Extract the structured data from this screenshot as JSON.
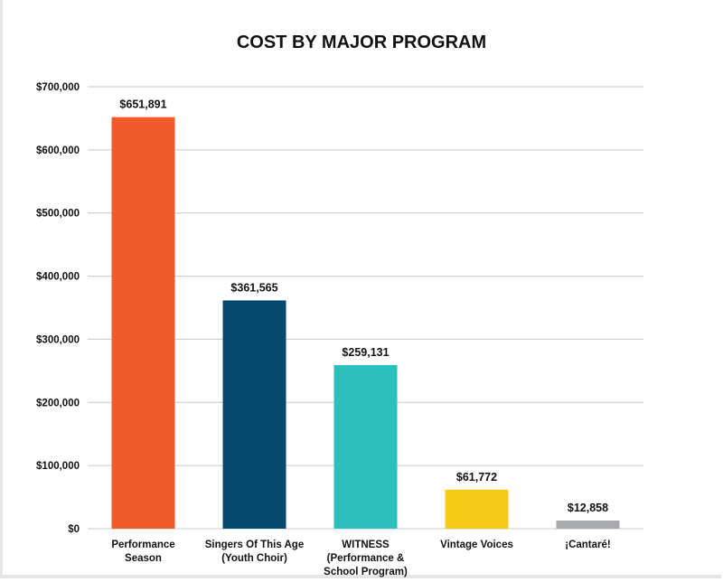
{
  "chart_data": {
    "type": "bar",
    "title": "COST BY MAJOR PROGRAM",
    "xlabel": "",
    "ylabel": "",
    "ylim": [
      0,
      700000
    ],
    "yticks": [
      0,
      100000,
      200000,
      300000,
      400000,
      500000,
      600000,
      700000
    ],
    "ytick_labels": [
      "$0",
      "$100,000",
      "$200,000",
      "$300,000",
      "$400,000",
      "$500,000",
      "$600,000",
      "$700,000"
    ],
    "grid": true,
    "categories": [
      [
        "Performance",
        "Season"
      ],
      [
        "Singers Of This Age",
        "(Youth Choir)"
      ],
      [
        "WITNESS",
        "(Performance &",
        "School Program)"
      ],
      [
        "Vintage Voices"
      ],
      [
        "¡Cantaré!"
      ]
    ],
    "values": [
      651891,
      361565,
      259131,
      61772,
      12858
    ],
    "data_labels": [
      "$651,891",
      "$361,565",
      "$259,131",
      "$61,772",
      "$12,858"
    ],
    "colors": [
      "#F15A2B",
      "#044A6E",
      "#2BBFBD",
      "#F4CC17",
      "#A7A9AC"
    ]
  }
}
